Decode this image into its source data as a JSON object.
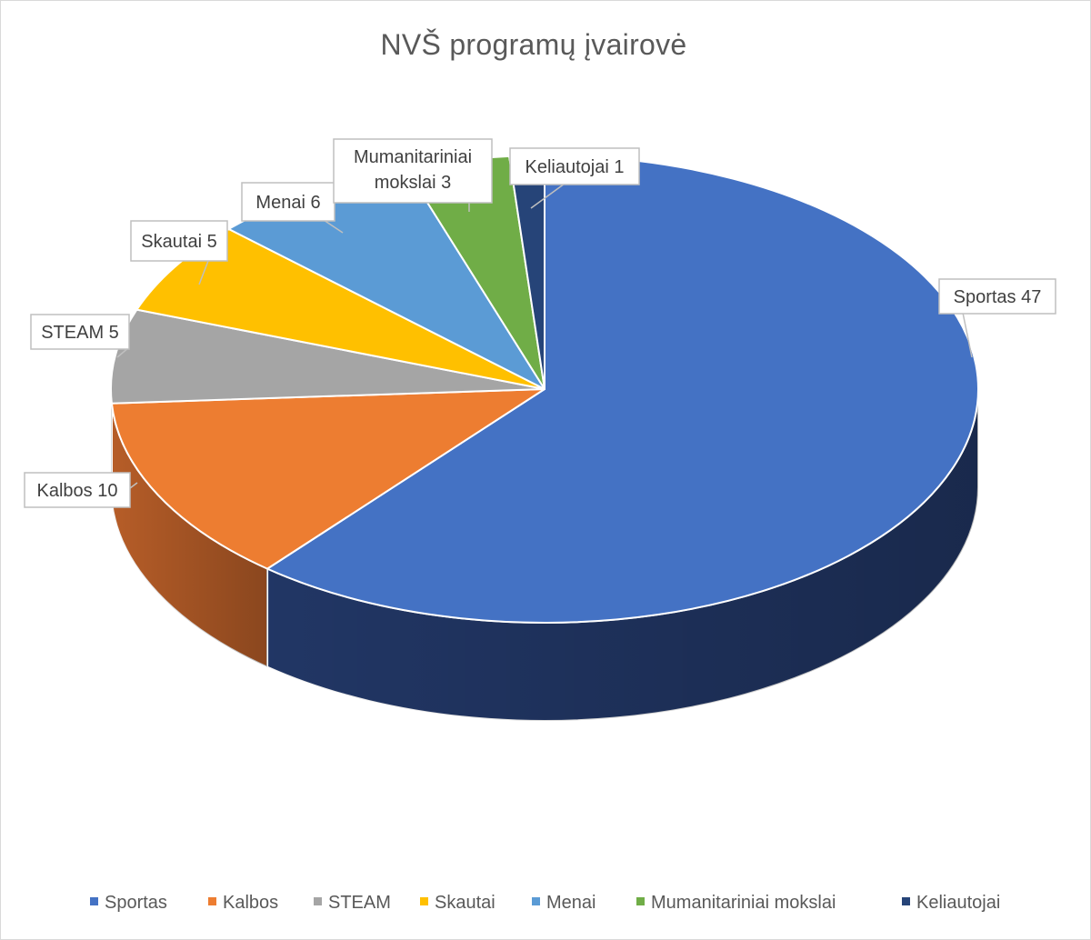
{
  "chart_data": {
    "type": "pie",
    "title": "NVŠ programų įvairovė",
    "categories": [
      "Sportas",
      "Kalbos",
      "STEAM",
      "Skautai",
      "Menai",
      "Mumanitariniai mokslai",
      "Keliautojai"
    ],
    "values": [
      47,
      10,
      5,
      5,
      6,
      3,
      1
    ],
    "data_labels": [
      "Sportas 47",
      "Kalbos 10",
      "STEAM 5",
      "Skautai 5",
      "Menai 6",
      "Mumanitariniai mokslai 3",
      "Keliautojai 1"
    ],
    "colors": [
      "#4472c4",
      "#ed7d31",
      "#a5a5a5",
      "#ffc000",
      "#5b9bd5",
      "#70ad47",
      "#264478"
    ],
    "side_colors": [
      "#23396a",
      "#c0622a",
      "#7c7c7c",
      "#c49400",
      "#3b76ad",
      "#4f7f31",
      "#16284a"
    ],
    "style": "3d",
    "legend": "bottom"
  }
}
